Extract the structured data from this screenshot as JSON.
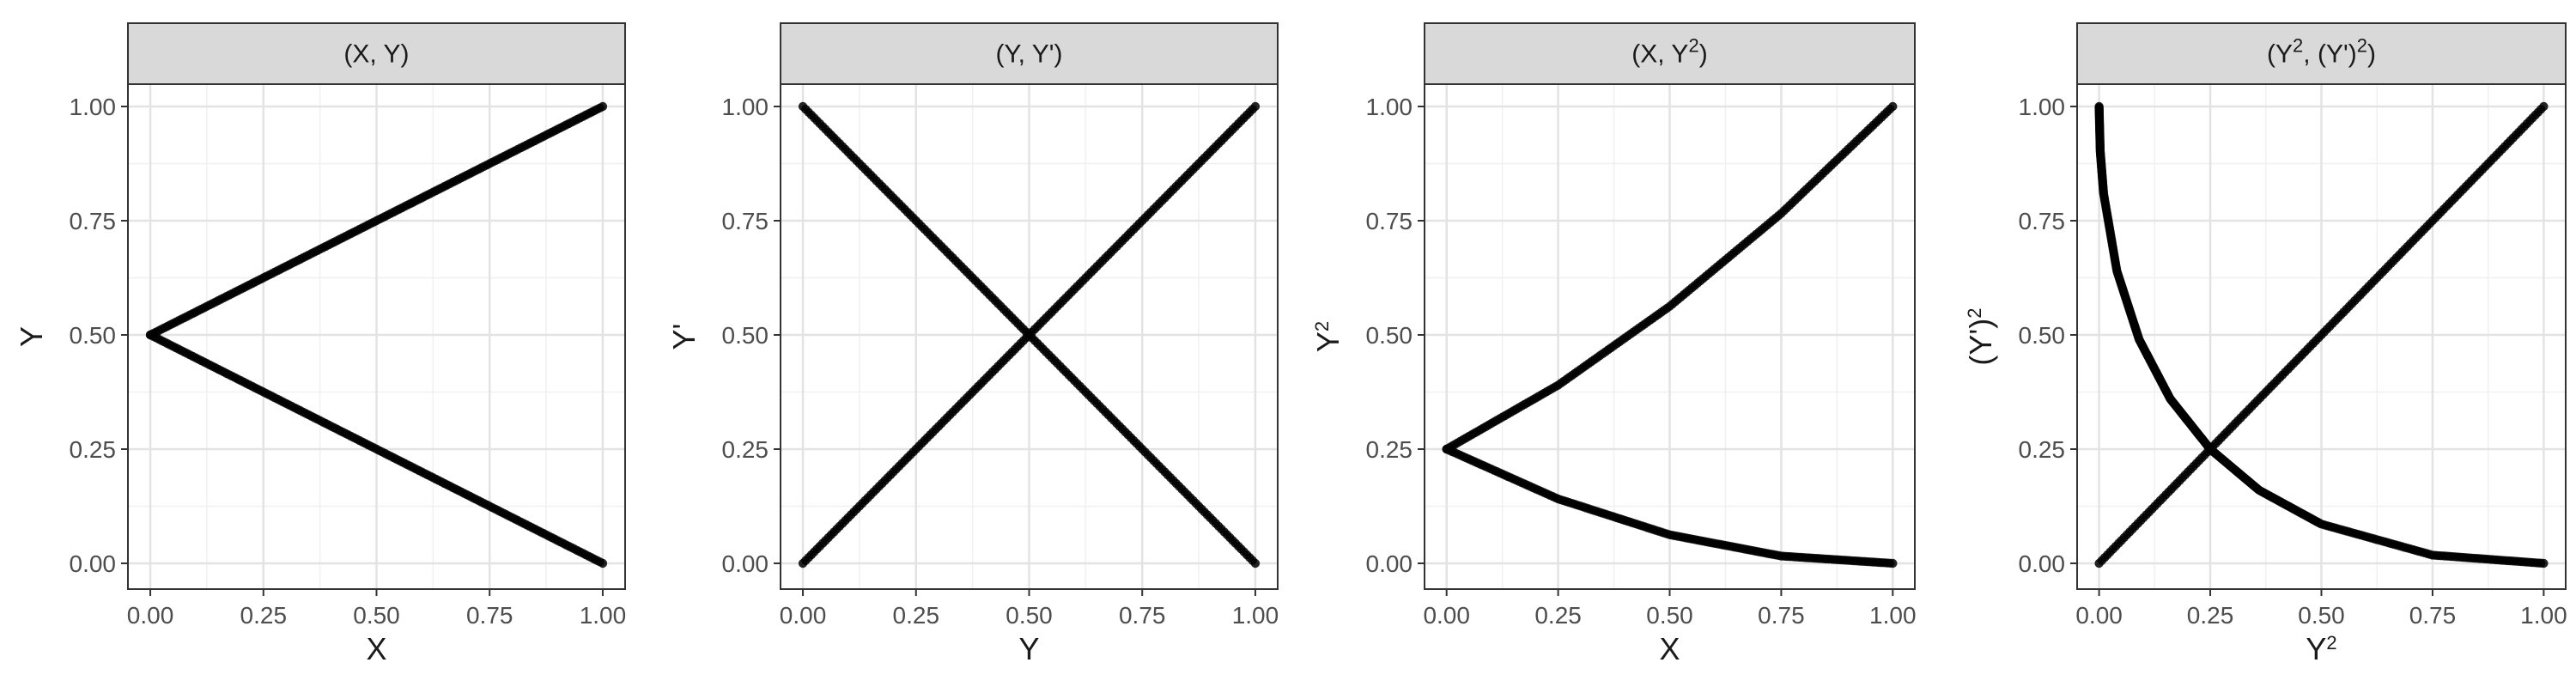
{
  "chart_data": [
    {
      "type": "scatter",
      "title": "(X, Y)",
      "xlabel": "X",
      "ylabel": "Y",
      "xlim": [
        0,
        1
      ],
      "ylim": [
        0,
        1
      ],
      "xticks": [
        "0.00",
        "0.25",
        "0.50",
        "0.75",
        "1.00"
      ],
      "yticks": [
        "0.00",
        "0.25",
        "0.50",
        "0.75",
        "1.00"
      ],
      "grid": true,
      "series": [
        {
          "values": [
            [
              0.0,
              0.5
            ],
            [
              0.25,
              0.625
            ],
            [
              0.5,
              0.75
            ],
            [
              0.75,
              0.875
            ],
            [
              1.0,
              1.0
            ]
          ]
        },
        {
          "values": [
            [
              0.0,
              0.5
            ],
            [
              0.25,
              0.375
            ],
            [
              0.5,
              0.25
            ],
            [
              0.75,
              0.125
            ],
            [
              1.0,
              0.0
            ]
          ]
        }
      ]
    },
    {
      "type": "scatter",
      "title": "(Y, Y')",
      "xlabel": "Y",
      "ylabel": "Y'",
      "xlim": [
        0,
        1
      ],
      "ylim": [
        0,
        1
      ],
      "xticks": [
        "0.00",
        "0.25",
        "0.50",
        "0.75",
        "1.00"
      ],
      "yticks": [
        "0.00",
        "0.25",
        "0.50",
        "0.75",
        "1.00"
      ],
      "grid": true,
      "series": [
        {
          "values": [
            [
              0.0,
              0.0
            ],
            [
              0.25,
              0.25
            ],
            [
              0.5,
              0.5
            ],
            [
              0.75,
              0.75
            ],
            [
              1.0,
              1.0
            ]
          ]
        },
        {
          "values": [
            [
              0.0,
              1.0
            ],
            [
              0.25,
              0.75
            ],
            [
              0.5,
              0.5
            ],
            [
              0.75,
              0.25
            ],
            [
              1.0,
              0.0
            ]
          ]
        }
      ]
    },
    {
      "type": "scatter",
      "title": "(X, Y²)",
      "xlabel": "X",
      "ylabel": "Y²",
      "xlim": [
        0,
        1
      ],
      "ylim": [
        0,
        1
      ],
      "xticks": [
        "0.00",
        "0.25",
        "0.50",
        "0.75",
        "1.00"
      ],
      "yticks": [
        "0.00",
        "0.25",
        "0.50",
        "0.75",
        "1.00"
      ],
      "grid": true,
      "series": [
        {
          "values": [
            [
              0.0,
              0.25
            ],
            [
              0.25,
              0.39
            ],
            [
              0.5,
              0.5625
            ],
            [
              0.75,
              0.766
            ],
            [
              1.0,
              1.0
            ]
          ]
        },
        {
          "values": [
            [
              0.0,
              0.25
            ],
            [
              0.25,
              0.141
            ],
            [
              0.5,
              0.0625
            ],
            [
              0.75,
              0.016
            ],
            [
              1.0,
              0.0
            ]
          ]
        }
      ]
    },
    {
      "type": "scatter",
      "title": "(Y², (Y')²)",
      "xlabel": "Y²",
      "ylabel": "(Y')²",
      "xlim": [
        0,
        1
      ],
      "ylim": [
        0,
        1
      ],
      "xticks": [
        "0.00",
        "0.25",
        "0.50",
        "0.75",
        "1.00"
      ],
      "yticks": [
        "0.00",
        "0.25",
        "0.50",
        "0.75",
        "1.00"
      ],
      "grid": true,
      "series": [
        {
          "values": [
            [
              0.0,
              0.0
            ],
            [
              0.25,
              0.25
            ],
            [
              0.5,
              0.5
            ],
            [
              0.75,
              0.75
            ],
            [
              1.0,
              1.0
            ]
          ]
        },
        {
          "values": [
            [
              0.0,
              1.0
            ],
            [
              0.0025,
              0.9025
            ],
            [
              0.01,
              0.81
            ],
            [
              0.04,
              0.64
            ],
            [
              0.09,
              0.49
            ],
            [
              0.16,
              0.36
            ],
            [
              0.25,
              0.25
            ],
            [
              0.36,
              0.16
            ],
            [
              0.5,
              0.0858
            ],
            [
              0.75,
              0.018
            ],
            [
              1.0,
              0.0
            ]
          ]
        }
      ]
    }
  ]
}
